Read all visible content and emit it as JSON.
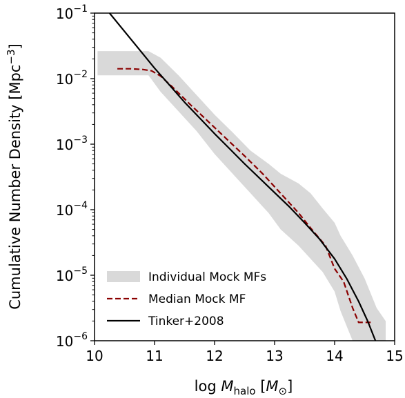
{
  "chart_data": {
    "type": "line",
    "xlabel": {
      "pre": "log ",
      "var": "M",
      "sub": "halo",
      "post": " [",
      "unit": "M",
      "unit_sub": "⊙",
      "close": "]"
    },
    "ylabel": {
      "text": "Cumulative Number Density [Mpc",
      "sup": "−3",
      "close": "]"
    },
    "xlim": [
      10,
      15
    ],
    "ylim_log10": [
      -6,
      -1
    ],
    "yscale": "log",
    "grid": false,
    "legend_position": "lower-left",
    "x_ticks": [
      "10",
      "11",
      "12",
      "13",
      "14",
      "15"
    ],
    "x_tick_values": [
      10,
      11,
      12,
      13,
      14,
      15
    ],
    "y_ticks": [
      {
        "base": "10",
        "exp": "−6",
        "value": -6
      },
      {
        "base": "10",
        "exp": "−5",
        "value": -5
      },
      {
        "base": "10",
        "exp": "−4",
        "value": -4
      },
      {
        "base": "10",
        "exp": "−3",
        "value": -3
      },
      {
        "base": "10",
        "exp": "−2",
        "value": -2
      },
      {
        "base": "10",
        "exp": "−1",
        "value": -1
      }
    ],
    "series": [
      {
        "name": "Individual Mock MFs",
        "kind": "band",
        "color": "#d9d9d9",
        "x": [
          10.05,
          10.3,
          10.6,
          10.9,
          11.1,
          11.4,
          11.7,
          12.0,
          12.3,
          12.6,
          12.9,
          13.1,
          13.4,
          13.6,
          13.8,
          14.0,
          14.1,
          14.3,
          14.5,
          14.7,
          14.85
        ],
        "upper_log10": [
          -1.58,
          -1.58,
          -1.58,
          -1.58,
          -1.68,
          -1.95,
          -2.25,
          -2.55,
          -2.82,
          -3.1,
          -3.3,
          -3.45,
          -3.6,
          -3.75,
          -3.98,
          -4.2,
          -4.4,
          -4.7,
          -5.05,
          -5.5,
          -5.7
        ],
        "lower_log10": [
          -1.95,
          -1.95,
          -1.95,
          -1.95,
          -2.2,
          -2.5,
          -2.8,
          -3.15,
          -3.45,
          -3.75,
          -4.05,
          -4.3,
          -4.55,
          -4.75,
          -4.95,
          -5.25,
          -5.55,
          -6.0,
          -6.0,
          -6.0,
          -6.0
        ]
      },
      {
        "name": "Median Mock MF",
        "kind": "dashed",
        "color": "#8b0000",
        "x": [
          10.38,
          10.6,
          10.8,
          10.95,
          11.1,
          11.3,
          11.6,
          11.9,
          12.2,
          12.5,
          12.8,
          13.1,
          13.4,
          13.6,
          13.85,
          14.0,
          14.15,
          14.3,
          14.4,
          14.6
        ],
        "y_log10": [
          -1.85,
          -1.85,
          -1.86,
          -1.88,
          -1.96,
          -2.13,
          -2.4,
          -2.66,
          -2.92,
          -3.18,
          -3.45,
          -3.75,
          -4.05,
          -4.28,
          -4.55,
          -4.9,
          -5.1,
          -5.5,
          -5.72,
          -5.72
        ]
      },
      {
        "name": "Tinker+2008",
        "kind": "line",
        "color": "#000000",
        "x": [
          10.25,
          10.5,
          10.75,
          11.0,
          11.25,
          11.5,
          11.75,
          12.0,
          12.25,
          12.5,
          12.75,
          13.0,
          13.25,
          13.5,
          13.75,
          14.0,
          14.2,
          14.4,
          14.55,
          14.68
        ],
        "y_log10": [
          -1.0,
          -1.28,
          -1.56,
          -1.84,
          -2.1,
          -2.36,
          -2.6,
          -2.84,
          -3.07,
          -3.3,
          -3.52,
          -3.74,
          -3.96,
          -4.2,
          -4.45,
          -4.75,
          -5.05,
          -5.4,
          -5.7,
          -6.0
        ]
      }
    ]
  }
}
